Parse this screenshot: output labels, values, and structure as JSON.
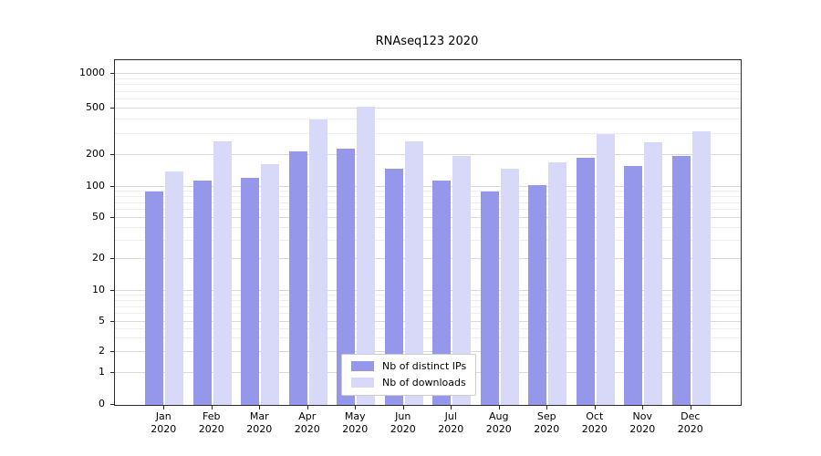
{
  "chart_data": {
    "type": "bar",
    "title": "RNAseq123 2020",
    "year": "2020",
    "categories": [
      "Jan",
      "Feb",
      "Mar",
      "Apr",
      "May",
      "Jun",
      "Jul",
      "Aug",
      "Sep",
      "Oct",
      "Nov",
      "Dec"
    ],
    "series": [
      {
        "name": "Nb of distinct IPs",
        "color": "#9598ea",
        "values": [
          90,
          115,
          122,
          215,
          225,
          150,
          115,
          90,
          105,
          190,
          158,
          195
        ]
      },
      {
        "name": "Nb of downloads",
        "color": "#d8d8f8",
        "values": [
          140,
          260,
          165,
          400,
          515,
          260,
          195,
          148,
          172,
          300,
          255,
          320
        ]
      }
    ],
    "y_ticks": [
      0,
      1,
      2,
      5,
      10,
      20,
      50,
      100,
      200,
      500,
      1000
    ],
    "y_minor_ticks": [
      3,
      4,
      6,
      7,
      8,
      9,
      30,
      40,
      60,
      70,
      80,
      90,
      300,
      400,
      600,
      700,
      800,
      900
    ],
    "y_scale": "symlog",
    "ylim": [
      0,
      1300
    ],
    "xlabel": "",
    "ylabel": "",
    "grid": "horizontal",
    "legend": {
      "position": "lower-center",
      "background": "#ffffff",
      "border_color": "#cccccc"
    }
  }
}
